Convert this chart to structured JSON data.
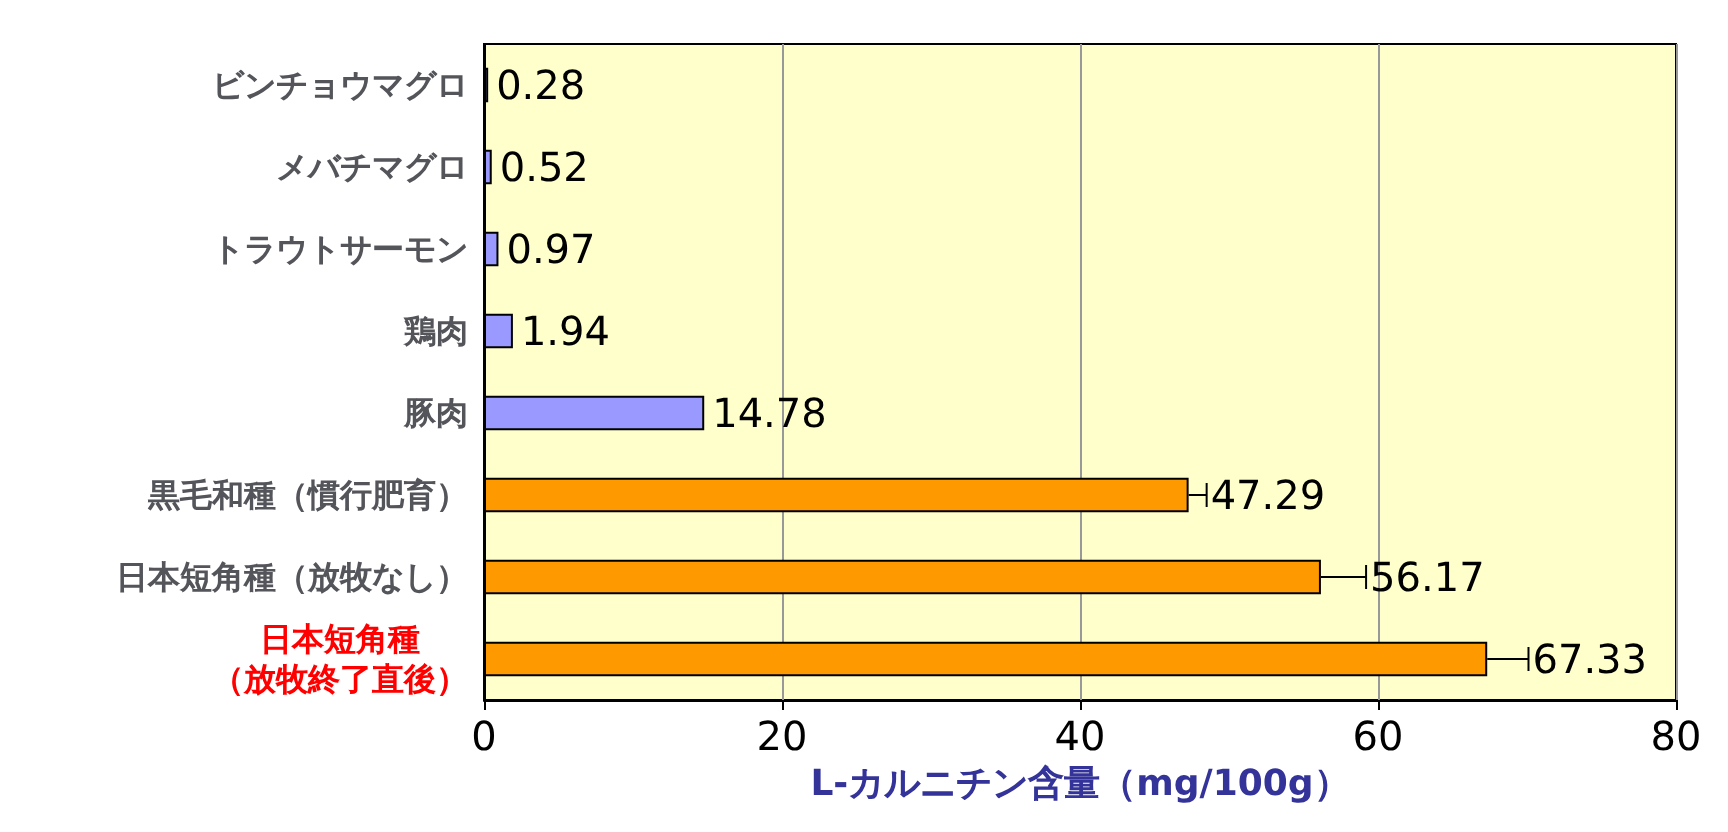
{
  "chart_data": {
    "type": "bar",
    "orientation": "horizontal",
    "xlabel": "L-カルニチン含量（mg/100g）",
    "categories": [
      "ビンチョウマグロ",
      "メバチマグロ",
      "トラウトサーモン",
      "鶏肉",
      "豚肉",
      "黒毛和種（慣行肥育）",
      "日本短角種（放牧なし）",
      "日本短角種（放牧終了直後）"
    ],
    "values": [
      0.28,
      0.52,
      0.97,
      1.94,
      14.78,
      47.29,
      56.17,
      67.33
    ],
    "colors": [
      "#9999ff",
      "#9999ff",
      "#9999ff",
      "#9999ff",
      "#9999ff",
      "#ff9900",
      "#ff9900",
      "#ff9900"
    ],
    "errors": [
      null,
      null,
      null,
      null,
      null,
      [
        47.29,
        48.5
      ],
      [
        56.17,
        59.2
      ],
      [
        67.33,
        70.1
      ]
    ],
    "xlim": [
      0,
      80
    ],
    "xticks": [
      0,
      20,
      40,
      60,
      80
    ],
    "grid": "x",
    "data_labels": true
  }
}
